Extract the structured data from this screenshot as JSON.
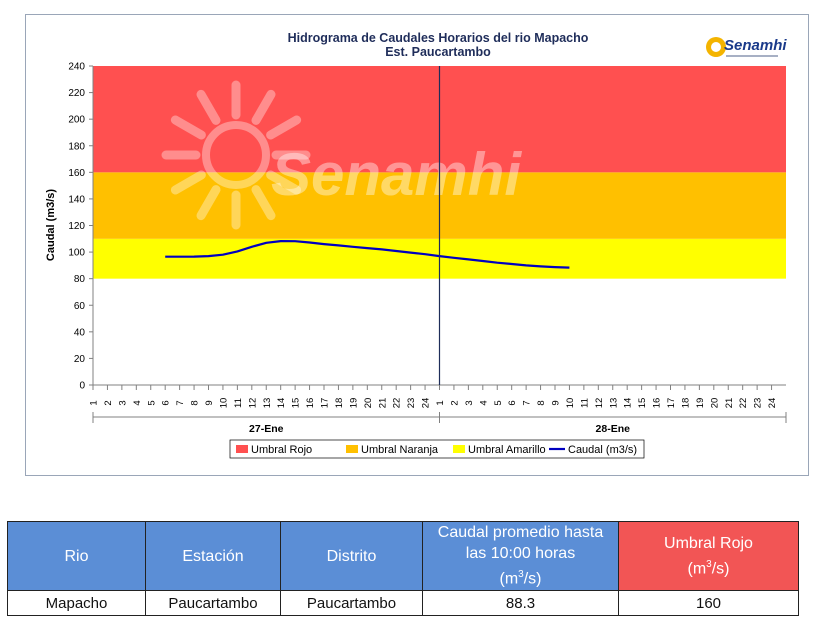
{
  "chart_data": {
    "type": "line",
    "title": "Hidrograma de Caudales Horarios del rio Mapacho",
    "subtitle": "Est. Paucartambo",
    "logo_text": "Senamhi",
    "watermark_text": "Senamhi",
    "ylabel": "Caudal  (m3/s)",
    "ylim": [
      0,
      240
    ],
    "yticks": [
      0,
      20,
      40,
      60,
      80,
      100,
      120,
      140,
      160,
      180,
      200,
      220,
      240
    ],
    "hour_labels": [
      "1",
      "2",
      "3",
      "4",
      "5",
      "6",
      "7",
      "8",
      "9",
      "10",
      "11",
      "12",
      "13",
      "14",
      "15",
      "16",
      "17",
      "18",
      "19",
      "20",
      "21",
      "22",
      "23",
      "24"
    ],
    "days": [
      "27-Ene",
      "28-Ene"
    ],
    "bands": [
      {
        "name": "Umbral Amarillo",
        "from": 80,
        "to": 110,
        "color": "#ffff00"
      },
      {
        "name": "Umbral Naranja",
        "from": 110,
        "to": 160,
        "color": "#ffc000"
      },
      {
        "name": "Umbral Rojo",
        "from": 160,
        "to": 240,
        "color": "#ff5050"
      }
    ],
    "series": [
      {
        "name": "Caudal (m3/s)",
        "color": "#0000c0",
        "x": [
          "27-Ene 6",
          "27-Ene 7",
          "27-Ene 8",
          "27-Ene 9",
          "27-Ene 10",
          "27-Ene 11",
          "27-Ene 12",
          "27-Ene 13",
          "27-Ene 14",
          "27-Ene 15",
          "27-Ene 16",
          "27-Ene 17",
          "27-Ene 18",
          "27-Ene 19",
          "27-Ene 20",
          "27-Ene 21",
          "27-Ene 22",
          "27-Ene 23",
          "27-Ene 24",
          "28-Ene 1",
          "28-Ene 2",
          "28-Ene 3",
          "28-Ene 4",
          "28-Ene 5",
          "28-Ene 6",
          "28-Ene 7",
          "28-Ene 8",
          "28-Ene 9",
          "28-Ene 10"
        ],
        "values": [
          96.5,
          96.5,
          96.6,
          97.0,
          98.0,
          100.5,
          104.0,
          107.0,
          108.3,
          108.2,
          107.2,
          106.0,
          105.0,
          104.0,
          103.0,
          102.0,
          100.8,
          99.6,
          98.4,
          97.0,
          95.7,
          94.5,
          93.3,
          92.0,
          91.0,
          90.0,
          89.2,
          88.7,
          88.3
        ]
      }
    ],
    "legend": [
      "Umbral Rojo",
      "Umbral Naranja",
      "Umbral Amarillo",
      "Caudal (m3/s)"
    ],
    "legend_position": "bottom",
    "grid": false
  },
  "table": {
    "headers": [
      "Rio",
      "Estación",
      "Distrito",
      "Caudal promedio hasta las 10:00 horas",
      "Umbral Rojo"
    ],
    "units": [
      "(m",
      "3",
      "/s)"
    ],
    "row": [
      "Mapacho",
      "Paucartambo",
      "Paucartambo",
      "88.3",
      "160"
    ]
  }
}
